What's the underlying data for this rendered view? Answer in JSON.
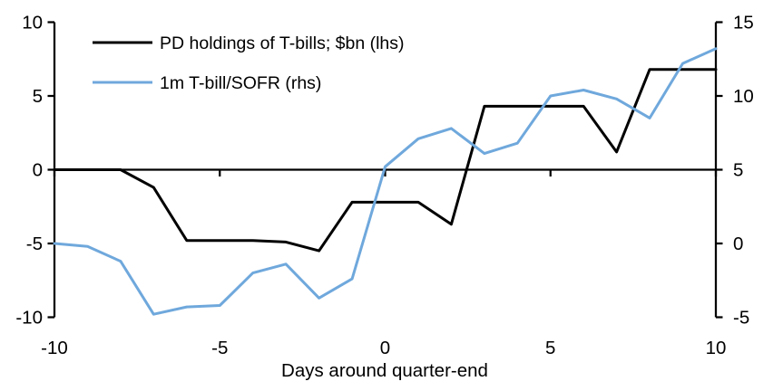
{
  "chart_data": {
    "type": "line",
    "title": "",
    "xlabel": "Days around quarter-end",
    "x": [
      -10,
      -9,
      -8,
      -7,
      -6,
      -5,
      -4,
      -3,
      -2,
      -1,
      0,
      1,
      2,
      3,
      4,
      5,
      6,
      7,
      8,
      9,
      10
    ],
    "series": [
      {
        "name": "PD holdings of T-bills; $bn (lhs)",
        "axis": "left",
        "color": "#000000",
        "values": [
          0,
          0,
          0,
          -1.2,
          -4.8,
          -4.8,
          -4.8,
          -4.9,
          -5.5,
          -2.2,
          -2.2,
          -2.2,
          -3.7,
          4.3,
          4.3,
          4.3,
          4.3,
          1.2,
          6.8,
          6.8,
          6.8
        ]
      },
      {
        "name": "1m T-bill/SOFR (rhs)",
        "axis": "right",
        "color": "#6FA8DC",
        "values": [
          0.0,
          -0.2,
          -1.2,
          -4.8,
          -4.3,
          -4.2,
          -2.0,
          -1.4,
          -3.7,
          -2.4,
          5.2,
          7.1,
          7.8,
          6.1,
          6.8,
          10.0,
          10.4,
          9.8,
          8.5,
          12.2,
          13.2
        ]
      }
    ],
    "left_axis": {
      "ticks": [
        10,
        5,
        0,
        -5,
        -10
      ],
      "min": -10,
      "max": 10
    },
    "right_axis": {
      "ticks": [
        15,
        10,
        5,
        0,
        -5
      ],
      "min": -5,
      "max": 15
    },
    "x_ticks": [
      -10,
      -5,
      0,
      5,
      10
    ],
    "x_min": -10,
    "x_max": 10,
    "grid": false,
    "legend_position": "top-left",
    "colors": {
      "axis": "#000000",
      "series_pd": "#000000",
      "series_sofr": "#6FA8DC"
    }
  }
}
